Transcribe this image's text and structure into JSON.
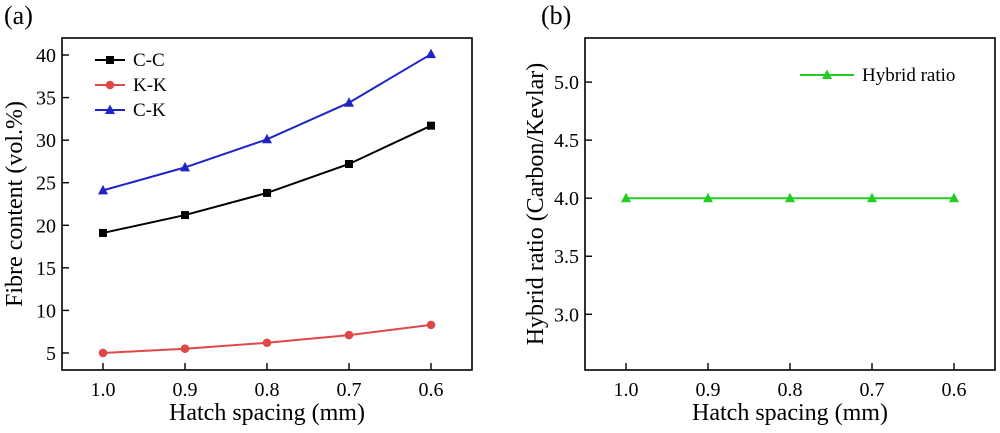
{
  "chart_data": [
    {
      "panel_label": "(a)",
      "type": "line",
      "x": [
        1.0,
        0.9,
        0.8,
        0.7,
        0.6
      ],
      "x_tick_labels": [
        "1.0",
        "0.9",
        "0.8",
        "0.7",
        "0.6"
      ],
      "xlabel": "Hatch spacing (mm)",
      "ylabel": "Fibre content (vol.%)",
      "xlim": [
        1.05,
        0.55
      ],
      "ylim": [
        3,
        42
      ],
      "y_ticks": [
        5,
        10,
        15,
        20,
        25,
        30,
        35,
        40
      ],
      "y_tick_labels": [
        "5",
        "10",
        "15",
        "20",
        "25",
        "30",
        "35",
        "40"
      ],
      "legend_position": "top-left",
      "grid": false,
      "series": [
        {
          "name": "C-C",
          "color": "#000000",
          "marker": "square",
          "values": [
            19.1,
            21.2,
            23.8,
            27.2,
            31.7
          ]
        },
        {
          "name": "K-K",
          "color": "#e04848",
          "marker": "circle",
          "values": [
            5.0,
            5.5,
            6.2,
            7.1,
            8.3
          ]
        },
        {
          "name": "C-K",
          "color": "#1f24c8",
          "marker": "triangle",
          "values": [
            24.1,
            26.8,
            30.1,
            34.4,
            40.1
          ]
        }
      ]
    },
    {
      "panel_label": "(b)",
      "type": "line",
      "x": [
        1.0,
        0.9,
        0.8,
        0.7,
        0.6
      ],
      "x_tick_labels": [
        "1.0",
        "0.9",
        "0.8",
        "0.7",
        "0.6"
      ],
      "xlabel": "Hatch spacing (mm)",
      "ylabel": "Hybrid ratio (Carbon/Kevlar)",
      "xlim": [
        1.05,
        0.55
      ],
      "ylim": [
        2.52,
        5.38
      ],
      "y_ticks": [
        3.0,
        3.5,
        4.0,
        4.5,
        5.0
      ],
      "y_tick_labels": [
        "3.0",
        "3.5",
        "4.0",
        "4.5",
        "5.0"
      ],
      "legend_position": "top-right",
      "grid": false,
      "series": [
        {
          "name": "Hybrid ratio",
          "color": "#22cc22",
          "marker": "triangle",
          "values": [
            4.0,
            4.0,
            4.0,
            4.0,
            4.0
          ]
        }
      ]
    }
  ]
}
